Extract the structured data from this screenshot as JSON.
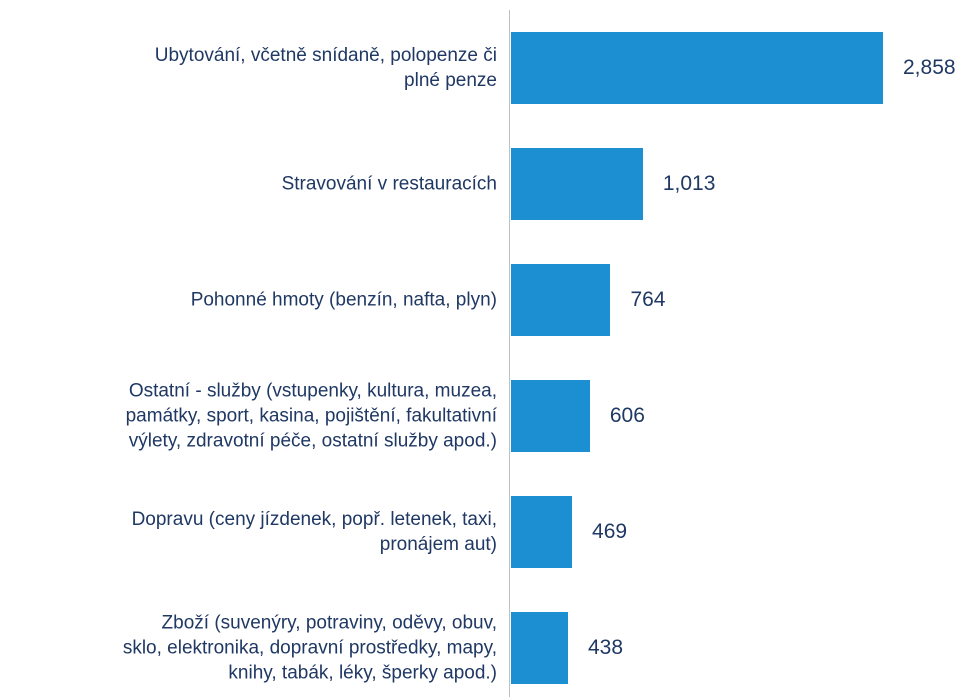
{
  "chart_data": {
    "type": "bar",
    "orientation": "horizontal",
    "color": "#1c8fd3",
    "categories": [
      "Ubytování, včetně snídaně, polopenze či\nplné penze",
      "Stravování v restauracích",
      "Pohonné hmoty (benzín, nafta, plyn)",
      "Ostatní - služby (vstupenky, kultura, muzea,\npamátky, sport, kasina, pojištění, fakultativní\nvýlety, zdravotní péče, ostatní služby apod.)",
      "Dopravu (ceny jízdenek, popř. letenek, taxi,\npronájem aut)",
      "Zboží (suvenýry, potraviny, oděvy, obuv,\nsklo, elektronika, dopravní prostředky, mapy,\nknihy, tabák, léky, šperky apod.)"
    ],
    "values": [
      2858,
      1013,
      764,
      606,
      469,
      438
    ],
    "value_labels": [
      "2,858",
      "1,013",
      "764",
      "606",
      "469",
      "438"
    ]
  }
}
